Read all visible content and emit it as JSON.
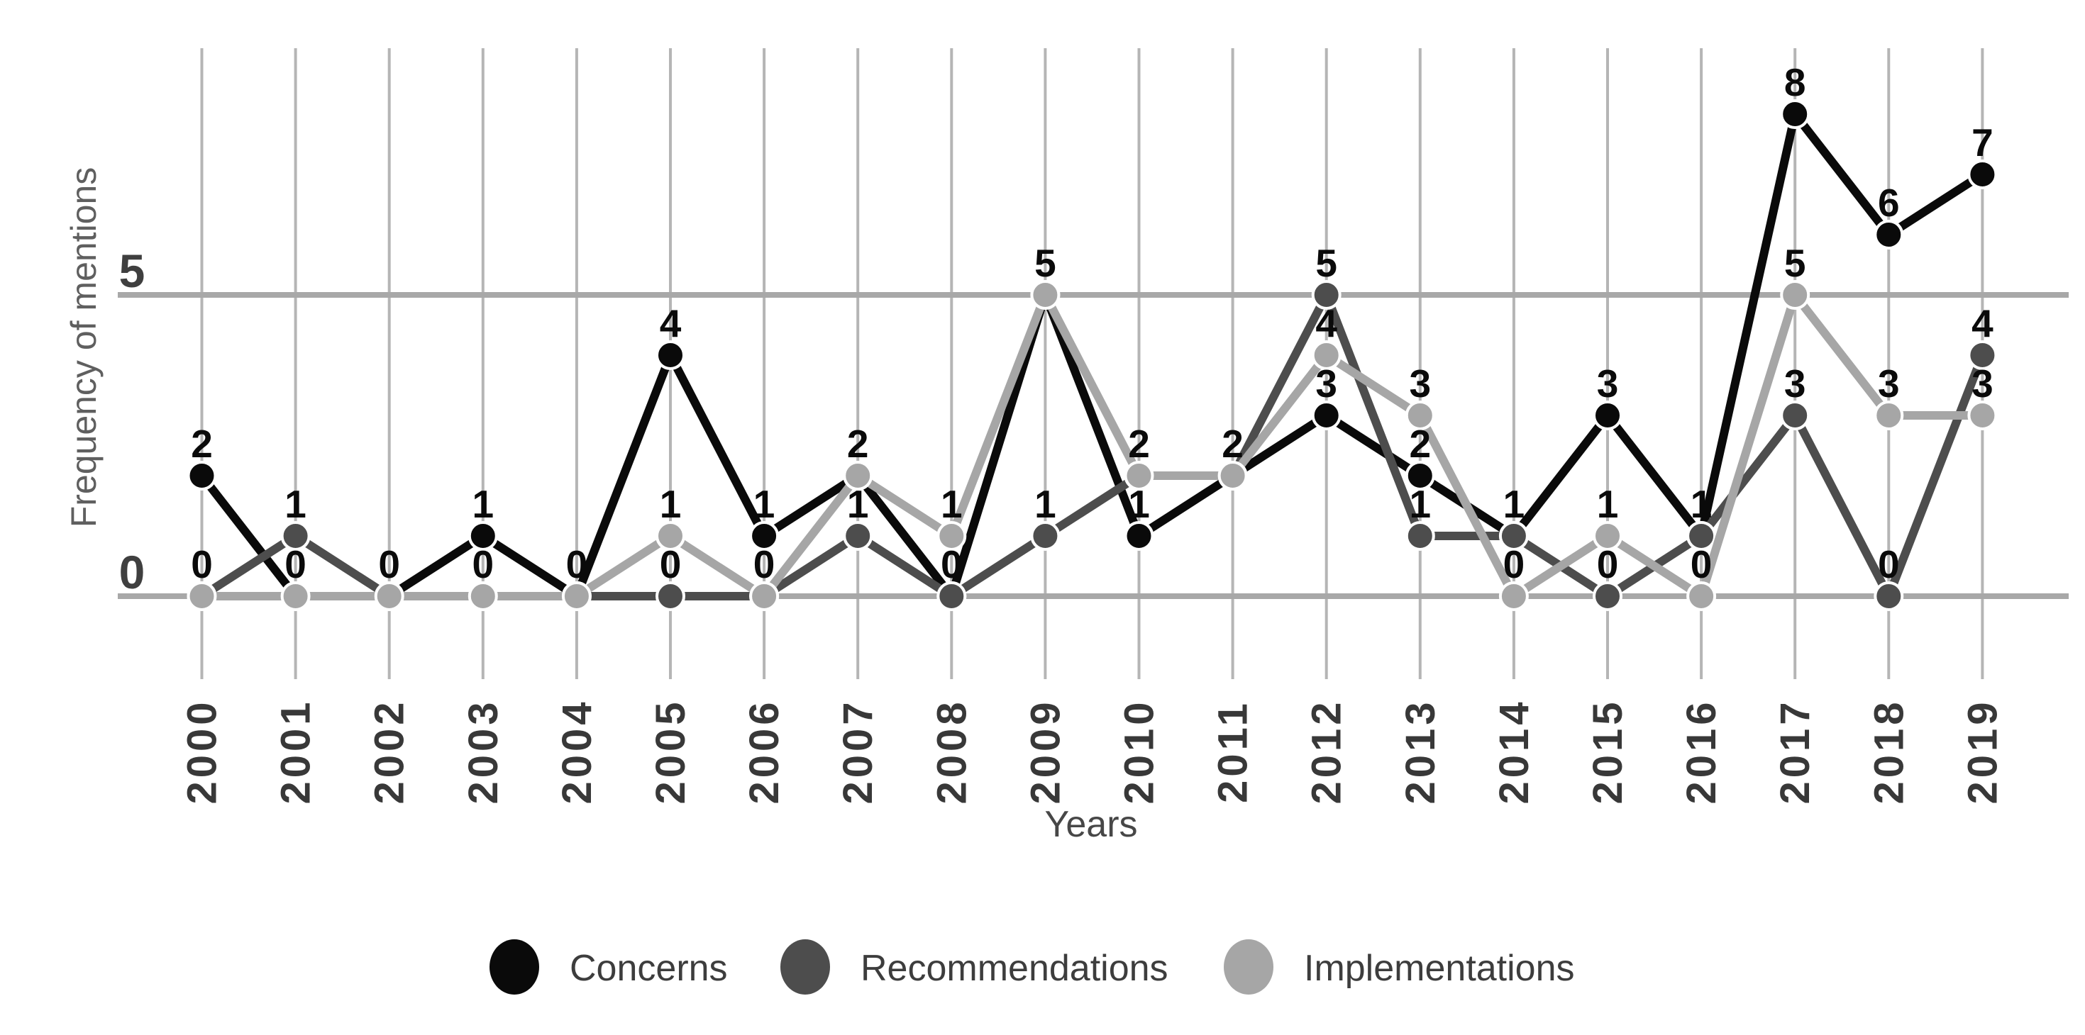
{
  "page": {
    "background": "#ffffff"
  },
  "chart_data": {
    "type": "line",
    "title": "",
    "xlabel": "Years",
    "ylabel": "Frequency of mentions",
    "x": [
      "2000",
      "2001",
      "2002",
      "2003",
      "2004",
      "2005",
      "2006",
      "2007",
      "2008",
      "2009",
      "2010",
      "2011",
      "2012",
      "2013",
      "2014",
      "2015",
      "2016",
      "2017",
      "2018",
      "2019"
    ],
    "series": [
      {
        "name": "Concerns",
        "color": "#0a0a0a",
        "values": [
          2,
          0,
          0,
          1,
          0,
          4,
          1,
          2,
          0,
          5,
          1,
          2,
          3,
          2,
          1,
          3,
          1,
          8,
          6,
          7
        ]
      },
      {
        "name": "Recommendations",
        "color": "#4d4d4d",
        "values": [
          0,
          1,
          0,
          0,
          0,
          0,
          0,
          1,
          0,
          1,
          2,
          2,
          5,
          1,
          1,
          0,
          1,
          3,
          0,
          4
        ]
      },
      {
        "name": "Implementations",
        "color": "#a6a6a6",
        "values": [
          0,
          0,
          0,
          0,
          0,
          1,
          0,
          2,
          1,
          5,
          2,
          2,
          4,
          3,
          0,
          1,
          0,
          5,
          3,
          3
        ]
      }
    ],
    "yticks": [
      {
        "value": 0,
        "label": "0"
      },
      {
        "value": 5,
        "label": "5"
      }
    ],
    "ylim": [
      0,
      9
    ],
    "grid": {
      "vertical": "one line per year",
      "horizontal": "lines at y=0 and y=5"
    },
    "point_labels": "value printed in black above each point; coinciding values share one label",
    "legend_position": "bottom-center"
  },
  "axes": {
    "x_title": "Years",
    "y_title": "Frequency of mentions",
    "ytick_labels": [
      "5",
      "0"
    ]
  },
  "legend": {
    "items": [
      {
        "label": "Concerns",
        "color": "#0a0a0a"
      },
      {
        "label": "Recommendations",
        "color": "#4d4d4d"
      },
      {
        "label": "Implementations",
        "color": "#a6a6a6"
      }
    ]
  }
}
